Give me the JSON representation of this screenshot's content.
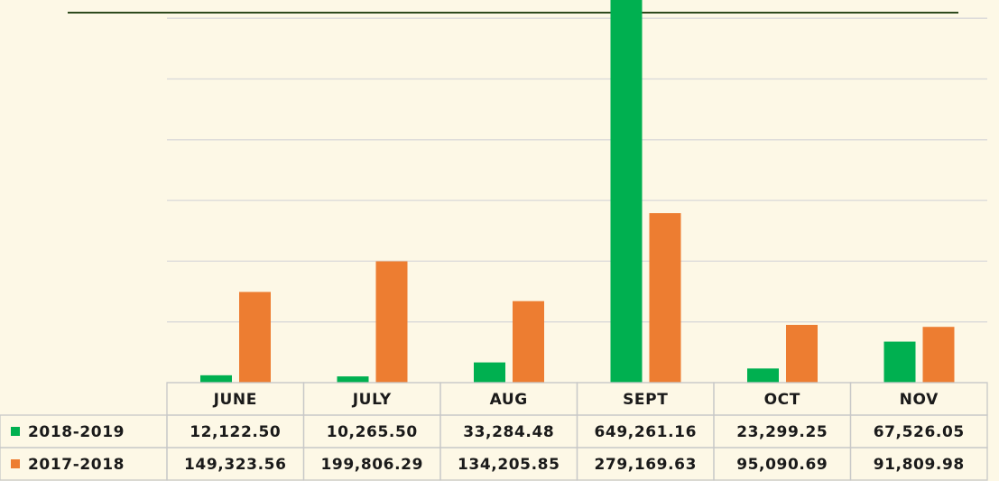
{
  "chart_data": {
    "type": "bar",
    "categories": [
      "JUNE",
      "JULY",
      "AUG",
      "SEPT",
      "OCT",
      "NOV"
    ],
    "series": [
      {
        "name": "2018-2019",
        "color": "#00b050",
        "values": [
          12122.5,
          10265.5,
          33284.48,
          649261.16,
          23299.25,
          67526.05
        ],
        "value_labels": [
          "12,122.50",
          "10,265.50",
          "33,284.48",
          "649,261.16",
          "23,299.25",
          "67,526.05"
        ]
      },
      {
        "name": "2017-2018",
        "color": "#ed7d31",
        "values": [
          149323.56,
          199806.29,
          134205.85,
          279169.63,
          95090.69,
          91809.98
        ],
        "value_labels": [
          "149,323.56",
          "199,806.29",
          "134,205.85",
          "279,169.63",
          "95,090.69",
          "91,809.98"
        ]
      }
    ],
    "ylim": [
      0,
      630000
    ],
    "yticks": [
      0,
      100000,
      200000,
      300000,
      400000,
      500000,
      600000
    ],
    "grid": true
  }
}
